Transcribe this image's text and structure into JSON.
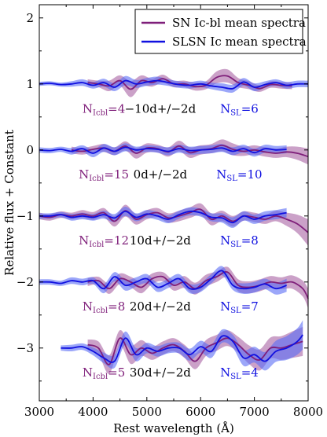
{
  "chart_data": {
    "type": "line",
    "title": "",
    "xlabel": "Rest wavelength (Å)",
    "ylabel": "Relative flux + Constant",
    "xlim": [
      3000,
      8000
    ],
    "ylim": [
      -3.8,
      2.2
    ],
    "x_ticks": [
      "3000",
      "4000",
      "5000",
      "6000",
      "7000",
      "8000"
    ],
    "y_ticks": [
      "2",
      "1",
      "0",
      "−1",
      "−2",
      "−3"
    ],
    "y_tick_values": [
      2,
      1,
      0,
      -1,
      -2,
      -3
    ],
    "x_tick_values": [
      3000,
      4000,
      5000,
      6000,
      7000,
      8000
    ],
    "grid": false,
    "legend_position": "top-right",
    "legend": [
      {
        "label": "SN Ic-bl mean spectra",
        "color": "#7f1f7a"
      },
      {
        "label": "SLSN Ic mean spectra",
        "color": "#1010e0"
      }
    ],
    "colors": {
      "icbl": "#7f1f7a",
      "icbl_band": "#a862a3",
      "slsn": "#1010e0",
      "slsn_band": "#5a6cf5"
    },
    "epochs": [
      {
        "offset": 1,
        "phase_label": "−10d+/−2d",
        "n_icbl_label": "N",
        "n_icbl_sub": "Icbl",
        "n_icbl_val": "=4",
        "n_sl_label": "N",
        "n_sl_sub": "SL",
        "n_sl_val": "=6",
        "icbl": {
          "x": [
            3900,
            4100,
            4300,
            4500,
            4700,
            4900,
            5100,
            5300,
            5500,
            5700,
            5900,
            6100,
            6300,
            6500,
            6700,
            6900,
            7100,
            7300,
            7500,
            7700
          ],
          "y": [
            1.02,
            1.0,
            0.97,
            1.05,
            0.92,
            1.05,
            1.02,
            1.08,
            1.0,
            1.0,
            0.96,
            0.98,
            1.1,
            1.12,
            1.02,
            0.98,
            0.93,
            0.99,
            0.98,
            0.97
          ],
          "err": [
            0.05,
            0.05,
            0.08,
            0.08,
            0.12,
            0.08,
            0.06,
            0.06,
            0.05,
            0.05,
            0.06,
            0.06,
            0.09,
            0.1,
            0.07,
            0.06,
            0.05,
            0.05,
            0.05,
            0.05
          ]
        },
        "slsn": {
          "x": [
            3000,
            3200,
            3400,
            3600,
            3800,
            4000,
            4200,
            4400,
            4600,
            4800,
            5000,
            5200,
            5400,
            5600,
            5800,
            6000,
            6200,
            6400,
            6600,
            6800,
            7000,
            7200,
            7400,
            7600,
            7800,
            8000
          ],
          "y": [
            1.0,
            1.01,
            0.99,
            1.0,
            1.02,
            0.98,
            1.02,
            0.95,
            1.05,
            1.0,
            1.03,
            1.05,
            1.02,
            0.99,
            0.98,
            1.0,
            0.97,
            0.95,
            0.93,
            1.03,
            0.95,
            0.99,
            1.02,
            0.98,
            1.0,
            1.0
          ],
          "err": [
            0.03,
            0.03,
            0.03,
            0.04,
            0.05,
            0.05,
            0.06,
            0.06,
            0.07,
            0.06,
            0.06,
            0.06,
            0.05,
            0.05,
            0.05,
            0.05,
            0.05,
            0.06,
            0.06,
            0.06,
            0.06,
            0.05,
            0.05,
            0.05,
            0.05,
            0.05
          ]
        }
      },
      {
        "offset": 0,
        "phase_label": "0d+/−2d",
        "n_icbl_label": "N",
        "n_icbl_sub": "Icbl",
        "n_icbl_val": "=15",
        "n_sl_label": "N",
        "n_sl_sub": "SL",
        "n_sl_val": "=10",
        "icbl": {
          "x": [
            3600,
            3800,
            4000,
            4200,
            4400,
            4600,
            4800,
            5000,
            5200,
            5400,
            5600,
            5800,
            6000,
            6200,
            6400,
            6600,
            6800,
            7000,
            7200,
            7400,
            7600,
            7800,
            8000
          ],
          "y": [
            0.0,
            -0.02,
            0.01,
            0.03,
            -0.02,
            0.06,
            -0.05,
            0.03,
            0.02,
            -0.03,
            0.06,
            -0.04,
            0.0,
            0.02,
            0.07,
            0.01,
            -0.02,
            0.0,
            -0.03,
            -0.05,
            -0.03,
            -0.05,
            -0.1
          ],
          "err": [
            0.05,
            0.05,
            0.05,
            0.06,
            0.06,
            0.07,
            0.08,
            0.07,
            0.06,
            0.07,
            0.08,
            0.08,
            0.07,
            0.07,
            0.09,
            0.09,
            0.07,
            0.07,
            0.07,
            0.07,
            0.08,
            0.1,
            0.12
          ]
        },
        "slsn": {
          "x": [
            3000,
            3200,
            3400,
            3600,
            3800,
            4000,
            4200,
            4400,
            4600,
            4800,
            5000,
            5200,
            5400,
            5600,
            5800,
            6000,
            6200,
            6400,
            6600,
            6800,
            7000,
            7200,
            7400,
            7600
          ],
          "y": [
            0.0,
            -0.01,
            0.01,
            -0.02,
            0.02,
            -0.05,
            0.03,
            -0.02,
            0.04,
            0.0,
            0.02,
            0.01,
            -0.02,
            0.02,
            -0.01,
            0.0,
            0.01,
            0.03,
            -0.02,
            0.02,
            -0.04,
            0.02,
            0.0,
            0.01
          ],
          "err": [
            0.04,
            0.04,
            0.04,
            0.05,
            0.05,
            0.06,
            0.06,
            0.06,
            0.06,
            0.05,
            0.05,
            0.05,
            0.06,
            0.06,
            0.06,
            0.06,
            0.06,
            0.06,
            0.06,
            0.06,
            0.06,
            0.06,
            0.06,
            0.06
          ]
        }
      },
      {
        "offset": -1,
        "phase_label": "10d+/−2d",
        "n_icbl_label": "N",
        "n_icbl_sub": "Icbl",
        "n_icbl_val": "=12",
        "n_sl_label": "N",
        "n_sl_sub": "SL",
        "n_sl_val": "=8",
        "icbl": {
          "x": [
            3000,
            3200,
            3400,
            3600,
            3800,
            4000,
            4200,
            4400,
            4600,
            4800,
            5000,
            5200,
            5400,
            5600,
            5800,
            6000,
            6200,
            6400,
            6600,
            6800,
            7000,
            7200,
            7400,
            7600,
            7800,
            8000
          ],
          "y": [
            -1.0,
            -1.02,
            -0.98,
            -1.0,
            -0.97,
            -1.0,
            -0.95,
            -1.08,
            -0.92,
            -1.05,
            -0.98,
            -0.95,
            -1.03,
            -1.0,
            -0.95,
            -0.9,
            -1.05,
            -1.0,
            -1.08,
            -1.0,
            -1.02,
            -1.05,
            -1.0,
            -1.05,
            -1.12,
            -1.25
          ],
          "err": [
            0.05,
            0.05,
            0.05,
            0.05,
            0.06,
            0.06,
            0.07,
            0.08,
            0.09,
            0.08,
            0.07,
            0.07,
            0.07,
            0.08,
            0.08,
            0.09,
            0.09,
            0.08,
            0.08,
            0.07,
            0.07,
            0.07,
            0.08,
            0.1,
            0.14,
            0.2
          ]
        },
        "slsn": {
          "x": [
            3000,
            3200,
            3400,
            3600,
            3800,
            4000,
            4200,
            4400,
            4600,
            4800,
            5000,
            5200,
            5400,
            5600,
            5800,
            6000,
            6200,
            6400,
            6600,
            6800,
            7000,
            7200,
            7400,
            7600
          ],
          "y": [
            -1.0,
            -1.0,
            -0.98,
            -1.02,
            -1.0,
            -1.02,
            -0.98,
            -1.03,
            -0.93,
            -1.02,
            -0.97,
            -1.0,
            -1.05,
            -0.98,
            -0.93,
            -0.95,
            -1.02,
            -1.03,
            -1.1,
            -1.0,
            -1.05,
            -1.0,
            -0.98,
            -0.95
          ],
          "err": [
            0.04,
            0.04,
            0.04,
            0.05,
            0.05,
            0.05,
            0.06,
            0.06,
            0.07,
            0.06,
            0.06,
            0.06,
            0.06,
            0.06,
            0.06,
            0.06,
            0.06,
            0.07,
            0.08,
            0.07,
            0.07,
            0.07,
            0.07,
            0.07
          ]
        }
      },
      {
        "offset": -2,
        "phase_label": "20d+/−2d",
        "n_icbl_label": "N",
        "n_icbl_sub": "Icbl",
        "n_icbl_val": "=8",
        "n_sl_label": "N",
        "n_sl_sub": "SL",
        "n_sl_val": "=7",
        "icbl": {
          "x": [
            3900,
            4100,
            4300,
            4500,
            4700,
            4900,
            5100,
            5300,
            5500,
            5700,
            5900,
            6100,
            6300,
            6500,
            6700,
            6900,
            7100,
            7300,
            7500,
            7700,
            7900,
            8000
          ],
          "y": [
            -2.0,
            -1.98,
            -2.1,
            -1.95,
            -2.0,
            -2.08,
            -1.95,
            -1.92,
            -2.05,
            -2.0,
            -2.1,
            -1.98,
            -1.92,
            -1.85,
            -2.05,
            -2.08,
            -2.05,
            -2.0,
            -2.02,
            -2.0,
            -2.1,
            -2.25
          ],
          "err": [
            0.06,
            0.06,
            0.08,
            0.08,
            0.08,
            0.09,
            0.08,
            0.07,
            0.08,
            0.09,
            0.09,
            0.09,
            0.08,
            0.08,
            0.09,
            0.09,
            0.09,
            0.09,
            0.09,
            0.1,
            0.12,
            0.15
          ]
        },
        "slsn": {
          "x": [
            3000,
            3200,
            3400,
            3600,
            3800,
            4000,
            4200,
            4400,
            4600,
            4800,
            5000,
            5200,
            5400,
            5600,
            5800,
            6000,
            6200,
            6400,
            6600,
            6800,
            7000,
            7200,
            7400,
            7600
          ],
          "y": [
            -2.0,
            -2.0,
            -2.02,
            -1.98,
            -2.0,
            -1.98,
            -2.1,
            -1.92,
            -2.05,
            -2.0,
            -1.95,
            -2.08,
            -2.02,
            -1.95,
            -2.1,
            -2.08,
            -1.95,
            -1.83,
            -2.05,
            -2.1,
            -2.08,
            -2.03,
            -2.1,
            -2.05
          ],
          "err": [
            0.04,
            0.04,
            0.04,
            0.05,
            0.05,
            0.05,
            0.07,
            0.07,
            0.08,
            0.07,
            0.07,
            0.07,
            0.07,
            0.07,
            0.07,
            0.07,
            0.07,
            0.07,
            0.07,
            0.08,
            0.08,
            0.08,
            0.09,
            0.1
          ]
        }
      },
      {
        "offset": -3,
        "phase_label": "30d+/−2d",
        "n_icbl_label": "N",
        "n_icbl_sub": "Icbl",
        "n_icbl_val": "=5",
        "n_sl_label": "N",
        "n_sl_sub": "SL",
        "n_sl_val": "=4",
        "icbl": {
          "x": [
            3900,
            4100,
            4300,
            4500,
            4700,
            4900,
            5100,
            5300,
            5500,
            5700,
            5900,
            6100,
            6300,
            6500,
            6700,
            6900,
            7100,
            7300,
            7500,
            7700,
            7900
          ],
          "y": [
            -2.95,
            -3.0,
            -3.25,
            -2.85,
            -3.1,
            -3.0,
            -3.08,
            -3.0,
            -2.95,
            -3.05,
            -3.2,
            -3.0,
            -2.92,
            -2.85,
            -2.95,
            -3.1,
            -3.18,
            -3.0,
            -3.0,
            -2.95,
            -2.9
          ],
          "err": [
            0.08,
            0.1,
            0.14,
            0.12,
            0.14,
            0.12,
            0.1,
            0.1,
            0.1,
            0.1,
            0.12,
            0.12,
            0.12,
            0.12,
            0.12,
            0.14,
            0.16,
            0.16,
            0.18,
            0.2,
            0.22
          ]
        },
        "slsn": {
          "x": [
            3400,
            3600,
            3800,
            4000,
            4200,
            4400,
            4600,
            4800,
            5000,
            5200,
            5400,
            5600,
            5800,
            6000,
            6200,
            6400,
            6600,
            6800,
            7000,
            7200,
            7400,
            7600,
            7800,
            7900
          ],
          "y": [
            -3.0,
            -3.0,
            -2.98,
            -3.05,
            -3.15,
            -3.2,
            -2.85,
            -3.1,
            -3.0,
            -3.05,
            -3.0,
            -3.0,
            -3.1,
            -2.98,
            -3.05,
            -2.82,
            -2.9,
            -3.15,
            -3.1,
            -3.2,
            -3.05,
            -3.0,
            -2.9,
            -2.8
          ],
          "err": [
            0.04,
            0.05,
            0.05,
            0.06,
            0.08,
            0.1,
            0.1,
            0.1,
            0.08,
            0.08,
            0.08,
            0.08,
            0.09,
            0.09,
            0.1,
            0.1,
            0.1,
            0.12,
            0.12,
            0.14,
            0.16,
            0.18,
            0.2,
            0.22
          ]
        }
      }
    ]
  }
}
